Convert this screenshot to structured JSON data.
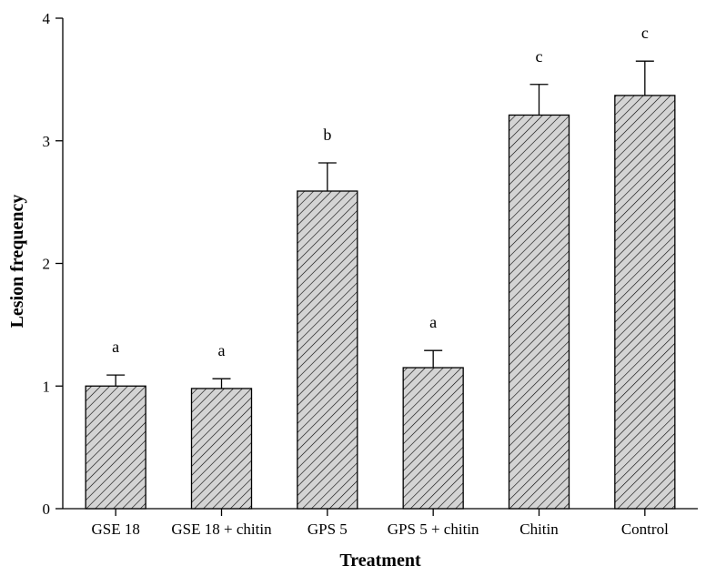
{
  "chart_data": {
    "type": "bar",
    "title": "",
    "xlabel": "Treatment",
    "ylabel": "Lesion frequency",
    "ylim": [
      0,
      4
    ],
    "yticks": [
      0,
      1,
      2,
      3,
      4
    ],
    "categories": [
      "GSE 18",
      "GSE 18 + chitin",
      "GPS 5",
      "GPS 5 + chitin",
      "Chitin",
      "Control"
    ],
    "values": [
      1.0,
      0.98,
      2.59,
      1.15,
      3.21,
      3.37
    ],
    "errors": [
      0.09,
      0.08,
      0.23,
      0.14,
      0.25,
      0.28
    ],
    "significance": [
      "a",
      "a",
      "b",
      "a",
      "c",
      "c"
    ],
    "grid": false,
    "bar_fill": "#d4d4d4",
    "hatch_color": "#000000"
  }
}
